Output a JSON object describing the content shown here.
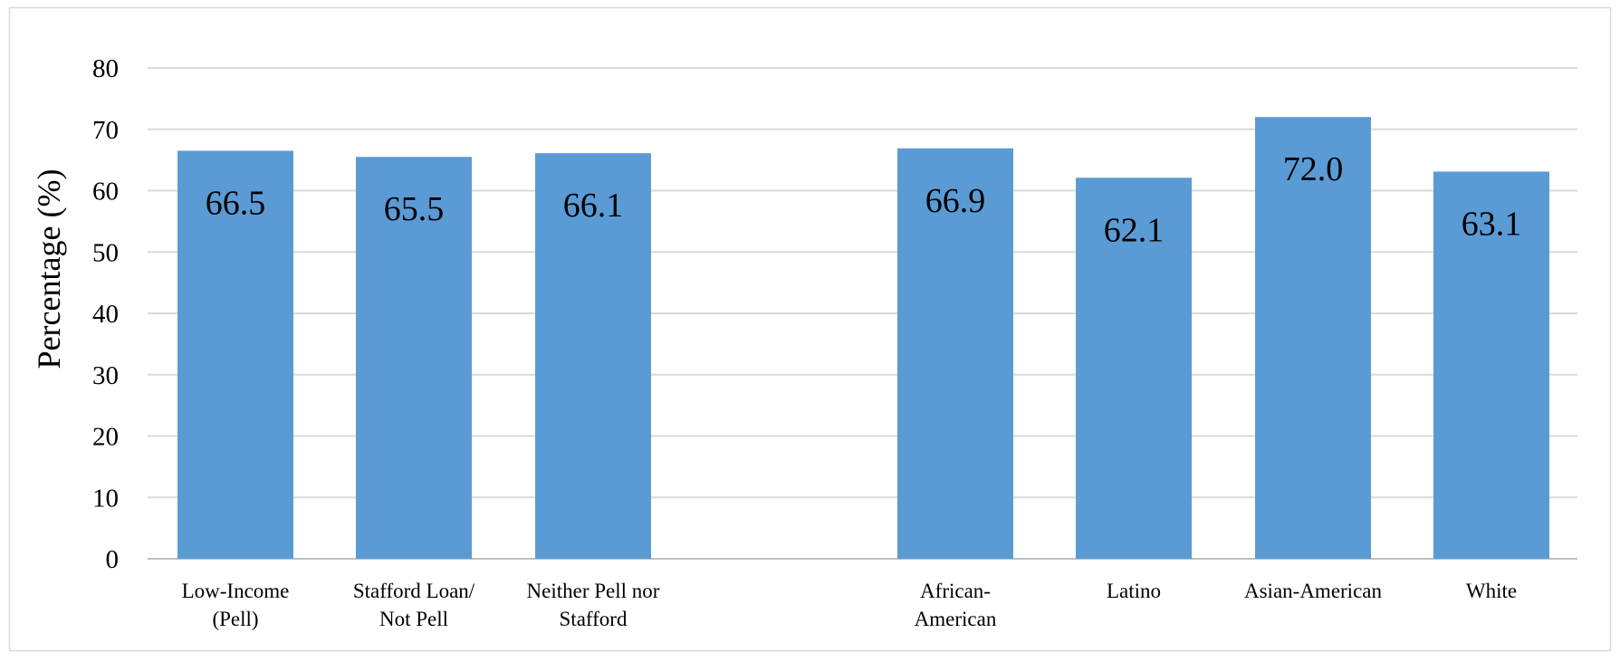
{
  "chart_data": {
    "type": "bar",
    "title": "",
    "xlabel": "",
    "ylabel": "Percentage (%)",
    "ylim": [
      0,
      80
    ],
    "yticks": [
      0,
      10,
      20,
      30,
      40,
      50,
      60,
      70,
      80
    ],
    "grid": true,
    "legend": "none",
    "bar_color": "#5B9BD5",
    "categories": [
      [
        "Low-Income",
        "(Pell)"
      ],
      [
        "Stafford Loan/",
        "Not Pell"
      ],
      [
        "Neither Pell nor",
        "Stafford"
      ],
      [
        "African-",
        "American"
      ],
      [
        "Latino"
      ],
      [
        "Asian-American"
      ],
      [
        "White"
      ]
    ],
    "values": [
      66.5,
      65.5,
      66.1,
      66.9,
      62.1,
      72.0,
      63.1
    ],
    "value_labels": [
      "66.5",
      "65.5",
      "66.1",
      "66.9",
      "62.1",
      "72.0",
      "63.1"
    ]
  }
}
